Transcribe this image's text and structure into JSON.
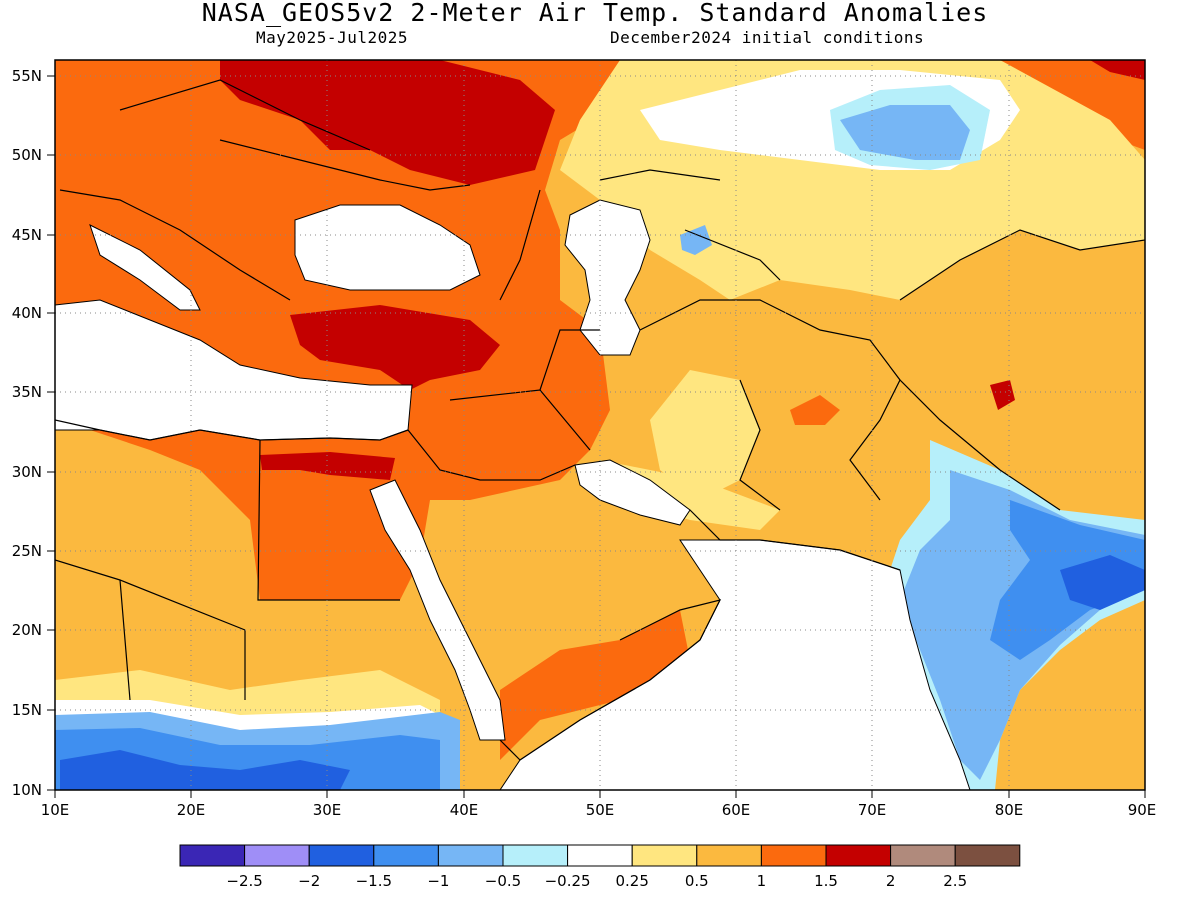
{
  "title": "NASA_GEOS5v2 2-Meter Air Temp. Standard Anomalies",
  "valid_period": "May2025-Jul2025",
  "init_conditions": "December2024 initial conditions",
  "axes": {
    "lat_labels": [
      "55N",
      "50N",
      "45N",
      "40N",
      "35N",
      "30N",
      "25N",
      "20N",
      "15N",
      "10N"
    ],
    "lon_labels": [
      "10E",
      "20E",
      "30E",
      "40E",
      "50E",
      "60E",
      "70E",
      "80E",
      "90E"
    ]
  },
  "colorbar": {
    "colors": [
      "#3a26b5",
      "#9f8ef7",
      "#2060e0",
      "#3f8ff0",
      "#76b6f5",
      "#b6effa",
      "#ffffff",
      "#ffe680",
      "#fbb93f",
      "#fb6a0e",
      "#c40000",
      "#b08a7c",
      "#7c5040"
    ],
    "labels": [
      "-2.5",
      "-2",
      "-1.5",
      "-1",
      "-0.5",
      "-0.25",
      "0.25",
      "0.5",
      "1",
      "1.5",
      "2",
      "2.5"
    ]
  },
  "regions": {
    "east_europe_peak": "2",
    "middle_east": "1.5",
    "arabia": "1",
    "india": "-1",
    "sahel_south": "-1.5"
  }
}
